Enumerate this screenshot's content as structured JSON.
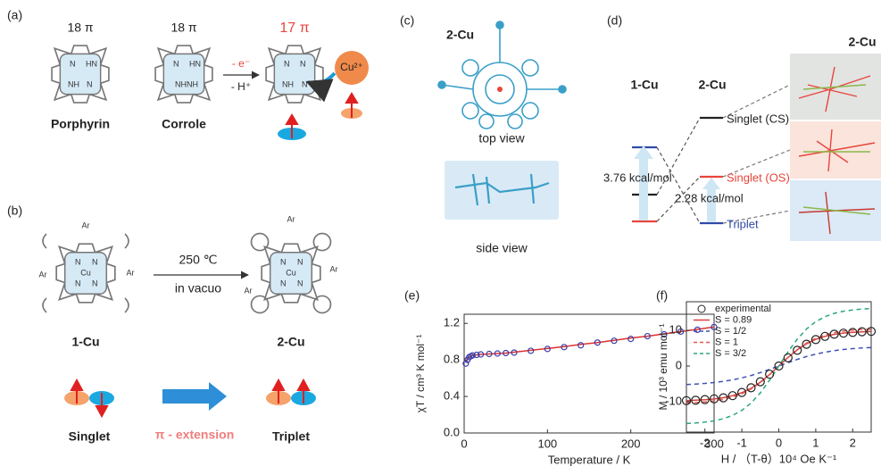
{
  "panel_a": {
    "label": "(a)",
    "pi_counts": [
      "18 π",
      "18 π",
      "17 π"
    ],
    "names": [
      "Porphyrin",
      "Corrole"
    ],
    "step_top": "- e⁻",
    "step_bottom": "- H⁺",
    "ion": "Cu²⁺",
    "atoms": {
      "n": "N",
      "nh": "NH",
      "hn": "HN",
      "nhnh": "NHNH"
    }
  },
  "panel_b": {
    "label": "(b)",
    "condition_top": "250 ℃",
    "condition_bottom": "in vacuo",
    "names": [
      "1-Cu",
      "2-Cu"
    ],
    "aryl": "Ar",
    "metal": "Cu",
    "atom_n": "N",
    "states": [
      "Singlet",
      "Triplet"
    ],
    "process": "π - extension"
  },
  "panel_c": {
    "label": "(c)",
    "compound": "2-Cu",
    "views": [
      "top view",
      "side view"
    ]
  },
  "panel_d": {
    "label": "(d)",
    "columns": [
      "1-Cu",
      "2-Cu"
    ],
    "structure_header": "2-Cu",
    "states": [
      "Singlet (CS)",
      "Singlet (OS)",
      "Triplet"
    ],
    "gaps": [
      "3.76 kcal/mol",
      "2.28 kcal/mol"
    ]
  },
  "chart_data": [
    {
      "type": "scatter",
      "label": "(e)",
      "xlabel": "Temperature / K",
      "ylabel": "χT / cm³ K mol⁻¹",
      "x": [
        2,
        4,
        6,
        8,
        10,
        15,
        20,
        30,
        40,
        50,
        60,
        80,
        100,
        120,
        140,
        160,
        180,
        200,
        220,
        240,
        260,
        280,
        300
      ],
      "series": [
        {
          "color": "#3b3fa8",
          "style": "circle",
          "values": [
            0.76,
            0.8,
            0.83,
            0.84,
            0.85,
            0.855,
            0.86,
            0.865,
            0.87,
            0.875,
            0.88,
            0.9,
            0.92,
            0.94,
            0.96,
            0.99,
            1.01,
            1.03,
            1.06,
            1.08,
            1.11,
            1.13,
            1.16
          ]
        },
        {
          "color": "#e0312e",
          "style": "solid",
          "values": [
            0.78,
            0.81,
            0.83,
            0.84,
            0.85,
            0.855,
            0.86,
            0.865,
            0.87,
            0.875,
            0.885,
            0.905,
            0.925,
            0.945,
            0.97,
            0.99,
            1.015,
            1.04,
            1.06,
            1.085,
            1.11,
            1.135,
            1.16
          ]
        }
      ],
      "xlim": [
        0,
        300
      ],
      "xticks": [
        0,
        100,
        200,
        300
      ],
      "ylim": [
        0,
        1.3
      ],
      "yticks": [
        {
          "value": 0,
          "label": "0.0"
        },
        0.4,
        0.8,
        1.2
      ]
    },
    {
      "type": "line",
      "label": "(f)",
      "xlabel": "H / （T-θ）10⁴ Oe K⁻¹",
      "ylabel": "M / 10³ emu mol⁻¹",
      "legend": "upper left",
      "x": [
        -2.5,
        -2.25,
        -2,
        -1.75,
        -1.5,
        -1.25,
        -1,
        -0.75,
        -0.5,
        -0.25,
        0,
        0.25,
        0.5,
        0.75,
        1,
        1.25,
        1.5,
        1.75,
        2,
        2.25,
        2.5
      ],
      "series": [
        {
          "name": "experimental",
          "color": "#222222",
          "style": "circle",
          "values": [
            -9.7,
            -9.6,
            -9.4,
            -9.2,
            -8.9,
            -8.3,
            -7.4,
            -6.1,
            -4.4,
            -2.3,
            0,
            2.3,
            4.4,
            6.1,
            7.4,
            8.3,
            8.9,
            9.2,
            9.4,
            9.6,
            9.7
          ]
        },
        {
          "name": "S = 0.89",
          "color": "#d9413b",
          "style": "solid",
          "values": [
            -9.67,
            -9.58,
            -9.45,
            -9.22,
            -8.87,
            -8.31,
            -7.47,
            -6.22,
            -4.53,
            -2.4,
            0,
            2.4,
            4.53,
            6.22,
            7.47,
            8.31,
            8.87,
            9.22,
            9.45,
            9.58,
            9.67
          ]
        },
        {
          "name": "S = 1/2",
          "color": "#3f51b5",
          "style": "dashed",
          "values": [
            -5.18,
            -5.05,
            -4.87,
            -4.63,
            -4.3,
            -3.87,
            -3.32,
            -2.65,
            -1.85,
            -0.95,
            0,
            0.95,
            1.85,
            2.65,
            3.32,
            3.87,
            4.3,
            4.63,
            4.87,
            5.05,
            5.18
          ]
        },
        {
          "name": "S = 1",
          "color": "#e8564c",
          "style": "dashed",
          "values": [
            -10.32,
            -10.22,
            -10.04,
            -9.78,
            -9.36,
            -8.72,
            -7.77,
            -6.43,
            -4.64,
            -2.45,
            0,
            2.45,
            4.64,
            6.43,
            7.77,
            8.72,
            9.36,
            9.78,
            10.04,
            10.22,
            10.32
          ]
        },
        {
          "name": "S = 3/2",
          "color": "#2aa876",
          "style": "dashed",
          "values": [
            -16.09,
            -15.94,
            -15.71,
            -15.34,
            -14.75,
            -13.82,
            -12.42,
            -10.35,
            -7.53,
            -3.99,
            0,
            3.99,
            7.53,
            10.35,
            12.42,
            13.82,
            14.75,
            15.34,
            15.71,
            15.94,
            16.09
          ]
        }
      ],
      "xlim": [
        -2.5,
        2.5
      ],
      "xticks": [
        -2,
        -1,
        0,
        1,
        2
      ],
      "ylim": [
        -18.5,
        18
      ],
      "yticks": [
        -10,
        0,
        10
      ]
    }
  ]
}
